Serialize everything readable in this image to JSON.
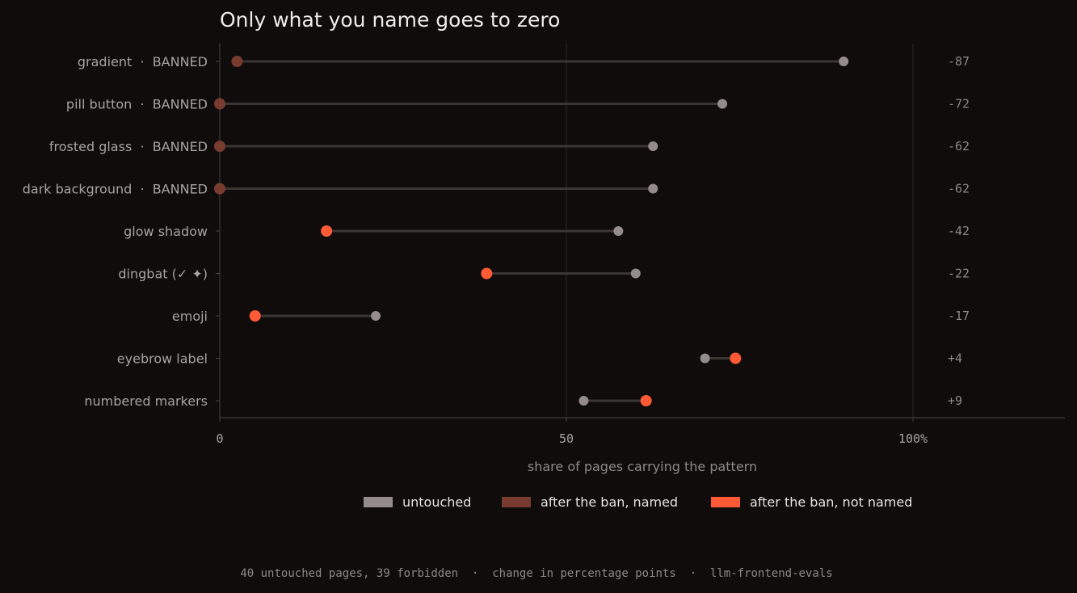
{
  "chart_data": {
    "type": "dumbbell",
    "title": "Only what you name goes to zero",
    "xlabel": "share of pages carrying the pattern",
    "xlim": [
      0,
      122
    ],
    "x_ticks": [
      {
        "value": 0,
        "label": "0"
      },
      {
        "value": 50,
        "label": "50"
      },
      {
        "value": 100,
        "label": "100%"
      }
    ],
    "grid_x": [
      50,
      100
    ],
    "series": [
      {
        "key": "untouched",
        "name": "untouched",
        "color": "#948c8b"
      },
      {
        "key": "named",
        "name": "after the ban, named",
        "color": "#773b2f"
      },
      {
        "key": "not_named",
        "name": "after the ban, not named",
        "color": "#ff5a36"
      }
    ],
    "rows": [
      {
        "label": "gradient  ·  BANNED",
        "untouched": 90,
        "after": 2.5,
        "after_series": "named",
        "delta": "-87"
      },
      {
        "label": "pill button  ·  BANNED",
        "untouched": 72.5,
        "after": 0,
        "after_series": "named",
        "delta": "-72"
      },
      {
        "label": "frosted glass  ·  BANNED",
        "untouched": 62.5,
        "after": 0,
        "after_series": "named",
        "delta": "-62"
      },
      {
        "label": "dark background  ·  BANNED",
        "untouched": 62.5,
        "after": 0,
        "after_series": "named",
        "delta": "-62"
      },
      {
        "label": "glow shadow",
        "untouched": 57.5,
        "after": 15.4,
        "after_series": "not_named",
        "delta": "-42"
      },
      {
        "label": "dingbat (✓ ✦)",
        "untouched": 60,
        "after": 38.5,
        "after_series": "not_named",
        "delta": "-22"
      },
      {
        "label": "emoji",
        "untouched": 22.5,
        "after": 5.1,
        "after_series": "not_named",
        "delta": "-17"
      },
      {
        "label": "eyebrow label",
        "untouched": 70,
        "after": 74.4,
        "after_series": "not_named",
        "delta": "+4"
      },
      {
        "label": "numbered markers",
        "untouched": 52.5,
        "after": 61.5,
        "after_series": "not_named",
        "delta": "+9"
      }
    ],
    "legend_position": "bottom-center",
    "footer": "40 untouched pages, 39 forbidden  ·  change in percentage points  ·  llm-frontend-evals"
  },
  "colors": {
    "background": "#0f0c0b",
    "connector": "#3b3634",
    "grid": "#2c2826",
    "axis": "#4a4442"
  }
}
